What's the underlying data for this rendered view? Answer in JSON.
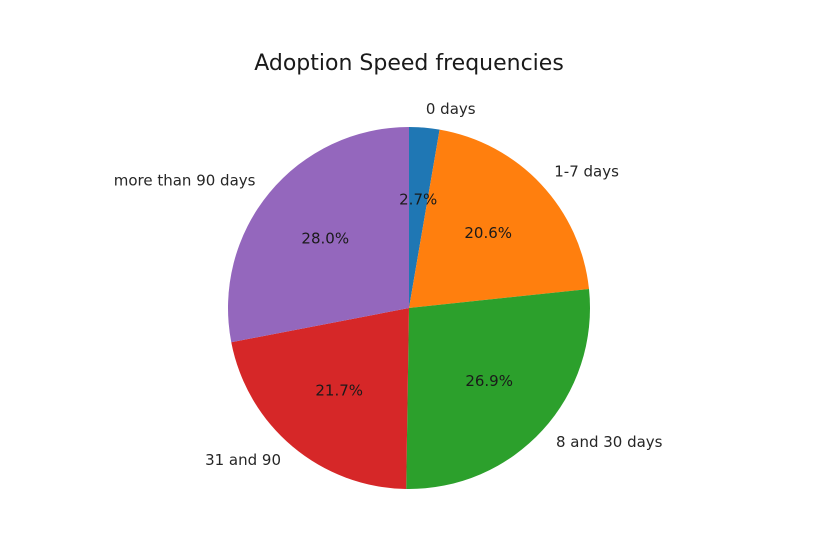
{
  "chart_data": {
    "type": "pie",
    "title": "Adoption Speed frequencies",
    "start_angle_deg": 90,
    "direction": "clockwise",
    "slices": [
      {
        "label": "0 days",
        "value": 2.7,
        "pct_label": "2.7%",
        "color": "#1f77b4"
      },
      {
        "label": "1-7 days",
        "value": 20.6,
        "pct_label": "20.6%",
        "color": "#ff7f0e"
      },
      {
        "label": "8 and 30 days",
        "value": 26.9,
        "pct_label": "26.9%",
        "color": "#2ca02c"
      },
      {
        "label": "31 and 90",
        "value": 21.7,
        "pct_label": "21.7%",
        "color": "#d62728"
      },
      {
        "label": "more than 90 days",
        "value": 28.0,
        "pct_label": "28.0%",
        "color": "#9467bd"
      }
    ]
  }
}
